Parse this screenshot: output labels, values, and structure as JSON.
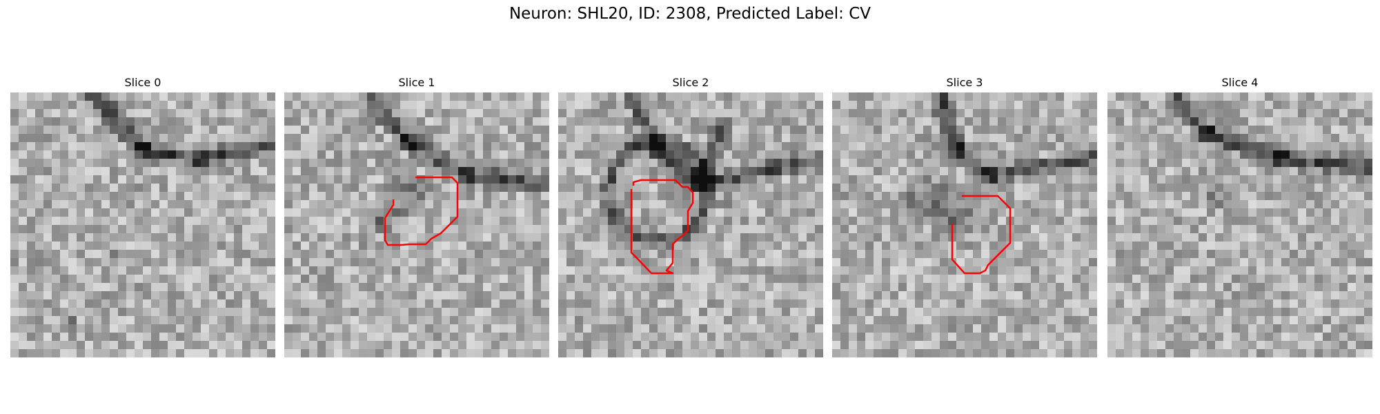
{
  "figure": {
    "title": "Neuron: SHL20, ID: 2308, Predicted Label: CV"
  },
  "panels": [
    {
      "title": "Slice 0",
      "has_contour": false
    },
    {
      "title": "Slice 1",
      "has_contour": true
    },
    {
      "title": "Slice 2",
      "has_contour": true
    },
    {
      "title": "Slice 3",
      "has_contour": true
    },
    {
      "title": "Slice 4",
      "has_contour": false
    }
  ],
  "colors": {
    "contour": "#ff0000",
    "colormap": "gray"
  }
}
